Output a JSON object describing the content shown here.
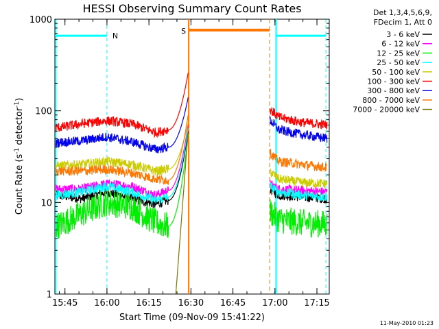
{
  "chart_data": {
    "type": "line",
    "title": "HESSI Observing Summary Count Rates",
    "xlabel": "Start Time (09-Nov-09 15:41:22)",
    "ylabel": "Count Rate (s^-1 detector^-1)",
    "ylabel_base": "Count Rate (s",
    "ylabel_exp1": "-1",
    "ylabel_mid": " detector",
    "ylabel_exp2": "-1",
    "ylabel_end": ")",
    "y_scale": "log",
    "ylim": [
      1,
      1000
    ],
    "xlim_minutes": [
      0,
      98
    ],
    "x_ticks": [
      {
        "label": "15:45",
        "t": 3.6
      },
      {
        "label": "16:00",
        "t": 18.6
      },
      {
        "label": "16:15",
        "t": 33.6
      },
      {
        "label": "16:30",
        "t": 48.6
      },
      {
        "label": "16:45",
        "t": 63.6
      },
      {
        "label": "17:00",
        "t": 78.6
      },
      {
        "label": "17:15",
        "t": 93.6
      }
    ],
    "y_ticks": [
      {
        "label": "1",
        "v": 1
      },
      {
        "label": "10",
        "v": 10
      },
      {
        "label": "100",
        "v": 100
      },
      {
        "label": "1000",
        "v": 1000
      }
    ],
    "legend_header": [
      "Det 1,3,4,5,6,9,",
      "FDecim 1, Att 0"
    ],
    "series": [
      {
        "name": "3 - 6 keV",
        "color": "#000000",
        "pre": [
          12,
          11,
          13,
          11,
          9.5,
          10.5
        ],
        "post": [
          14,
          12,
          11.5,
          11
        ]
      },
      {
        "name": "6 - 12 keV",
        "color": "#ff00ff",
        "pre": [
          14,
          14,
          16,
          15,
          12,
          13.5
        ],
        "post": [
          16,
          14,
          13.5,
          13
        ]
      },
      {
        "name": "12 - 25 keV",
        "color": "#00ee00",
        "pre": [
          5.5,
          7.5,
          10,
          9,
          6,
          5.5
        ],
        "post": [
          8,
          6.5,
          6,
          5.8
        ]
      },
      {
        "name": "25 - 50 keV",
        "color": "#00ffff",
        "pre": [
          12,
          13,
          15,
          13,
          10.5,
          11.5
        ],
        "post": [
          15,
          13,
          12,
          11.5
        ]
      },
      {
        "name": "50 - 100 keV",
        "color": "#cccc00",
        "pre": [
          25,
          26,
          28,
          26,
          22,
          23
        ],
        "post": [
          22,
          18,
          16.5,
          16
        ]
      },
      {
        "name": "100 - 300 keV",
        "color": "#ff0000",
        "pre": [
          65,
          72,
          78,
          72,
          58,
          62
        ],
        "post": [
          105,
          85,
          75,
          70
        ]
      },
      {
        "name": "300 - 800 keV",
        "color": "#0000ee",
        "pre": [
          45,
          47,
          52,
          46,
          38,
          40
        ],
        "post": [
          80,
          62,
          55,
          50
        ]
      },
      {
        "name": "800 - 7000 keV",
        "color": "#ff7700",
        "pre": [
          22,
          22,
          23,
          21,
          18,
          17.5
        ],
        "post": [
          35,
          28,
          26,
          24
        ]
      },
      {
        "name": "7000 - 20000 keV",
        "color": "#777700",
        "pre": [],
        "post": []
      }
    ],
    "annotations": [
      {
        "text": "N",
        "color": "#00ffff"
      },
      {
        "text": "S",
        "color": "#ff7700"
      }
    ]
  },
  "footer_timestamp": "11-May-2010 01:23"
}
